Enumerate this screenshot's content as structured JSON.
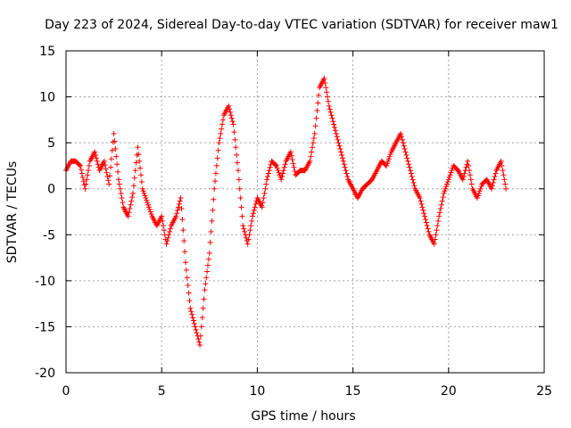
{
  "chart_data": {
    "type": "scatter",
    "title": "Day 223 of 2024, Sidereal Day-to-day VTEC variation (SDTVAR) for receiver maw1",
    "xlabel": "GPS time / hours",
    "ylabel": "SDTVAR / TECUs",
    "xlim": [
      0,
      25
    ],
    "ylim": [
      -20,
      15
    ],
    "xticks": [
      0,
      5,
      10,
      15,
      20,
      25
    ],
    "yticks": [
      -20,
      -15,
      -10,
      -5,
      0,
      5,
      10,
      15
    ],
    "grid": true,
    "marker": "+",
    "series": [
      {
        "name": "SDTVAR",
        "color": "#ff0000",
        "x": [
          0.0,
          0.25,
          0.5,
          0.75,
          1.0,
          1.25,
          1.5,
          1.75,
          2.0,
          2.25,
          2.5,
          2.75,
          3.0,
          3.25,
          3.5,
          3.75,
          4.0,
          4.25,
          4.5,
          4.75,
          5.0,
          5.25,
          5.5,
          5.75,
          6.0,
          6.25,
          6.5,
          6.75,
          7.0,
          7.25,
          7.5,
          7.75,
          8.0,
          8.25,
          8.5,
          8.75,
          9.0,
          9.25,
          9.5,
          9.75,
          10.0,
          10.25,
          10.5,
          10.75,
          11.0,
          11.25,
          11.5,
          11.75,
          12.0,
          12.25,
          12.5,
          12.75,
          13.0,
          13.25,
          13.5,
          13.75,
          14.0,
          14.25,
          14.5,
          14.75,
          15.0,
          15.25,
          15.5,
          15.75,
          16.0,
          16.25,
          16.5,
          16.75,
          17.0,
          17.25,
          17.5,
          17.75,
          18.0,
          18.25,
          18.5,
          18.75,
          19.0,
          19.25,
          19.5,
          19.75,
          20.0,
          20.25,
          20.5,
          20.75,
          21.0,
          21.25,
          21.5,
          21.75,
          22.0,
          22.25,
          22.5,
          22.75,
          23.0
        ],
        "y": [
          2.0,
          3.0,
          3.0,
          2.5,
          0.0,
          3.0,
          4.0,
          2.0,
          3.0,
          0.5,
          6.0,
          1.0,
          -2.0,
          -3.0,
          -0.5,
          4.5,
          0.0,
          -1.5,
          -3.0,
          -4.0,
          -3.0,
          -6.0,
          -4.0,
          -3.0,
          -1.0,
          -8.0,
          -13.0,
          -15.0,
          -17.0,
          -11.0,
          -7.0,
          0.0,
          5.0,
          8.0,
          9.0,
          7.0,
          2.0,
          -4.0,
          -6.0,
          -3.0,
          -1.0,
          -2.0,
          1.0,
          3.0,
          2.5,
          1.0,
          3.0,
          4.0,
          1.5,
          2.0,
          2.0,
          3.0,
          6.0,
          11.0,
          12.0,
          9.0,
          7.0,
          5.0,
          3.0,
          1.0,
          0.0,
          -1.0,
          0.0,
          0.5,
          1.0,
          2.0,
          3.0,
          2.5,
          4.0,
          5.0,
          6.0,
          4.0,
          2.0,
          0.0,
          -1.0,
          -3.0,
          -5.0,
          -6.0,
          -3.0,
          -0.5,
          1.0,
          2.5,
          2.0,
          1.0,
          3.0,
          0.0,
          -1.0,
          0.5,
          1.0,
          0.0,
          2.0,
          3.0,
          0.0
        ]
      }
    ]
  }
}
